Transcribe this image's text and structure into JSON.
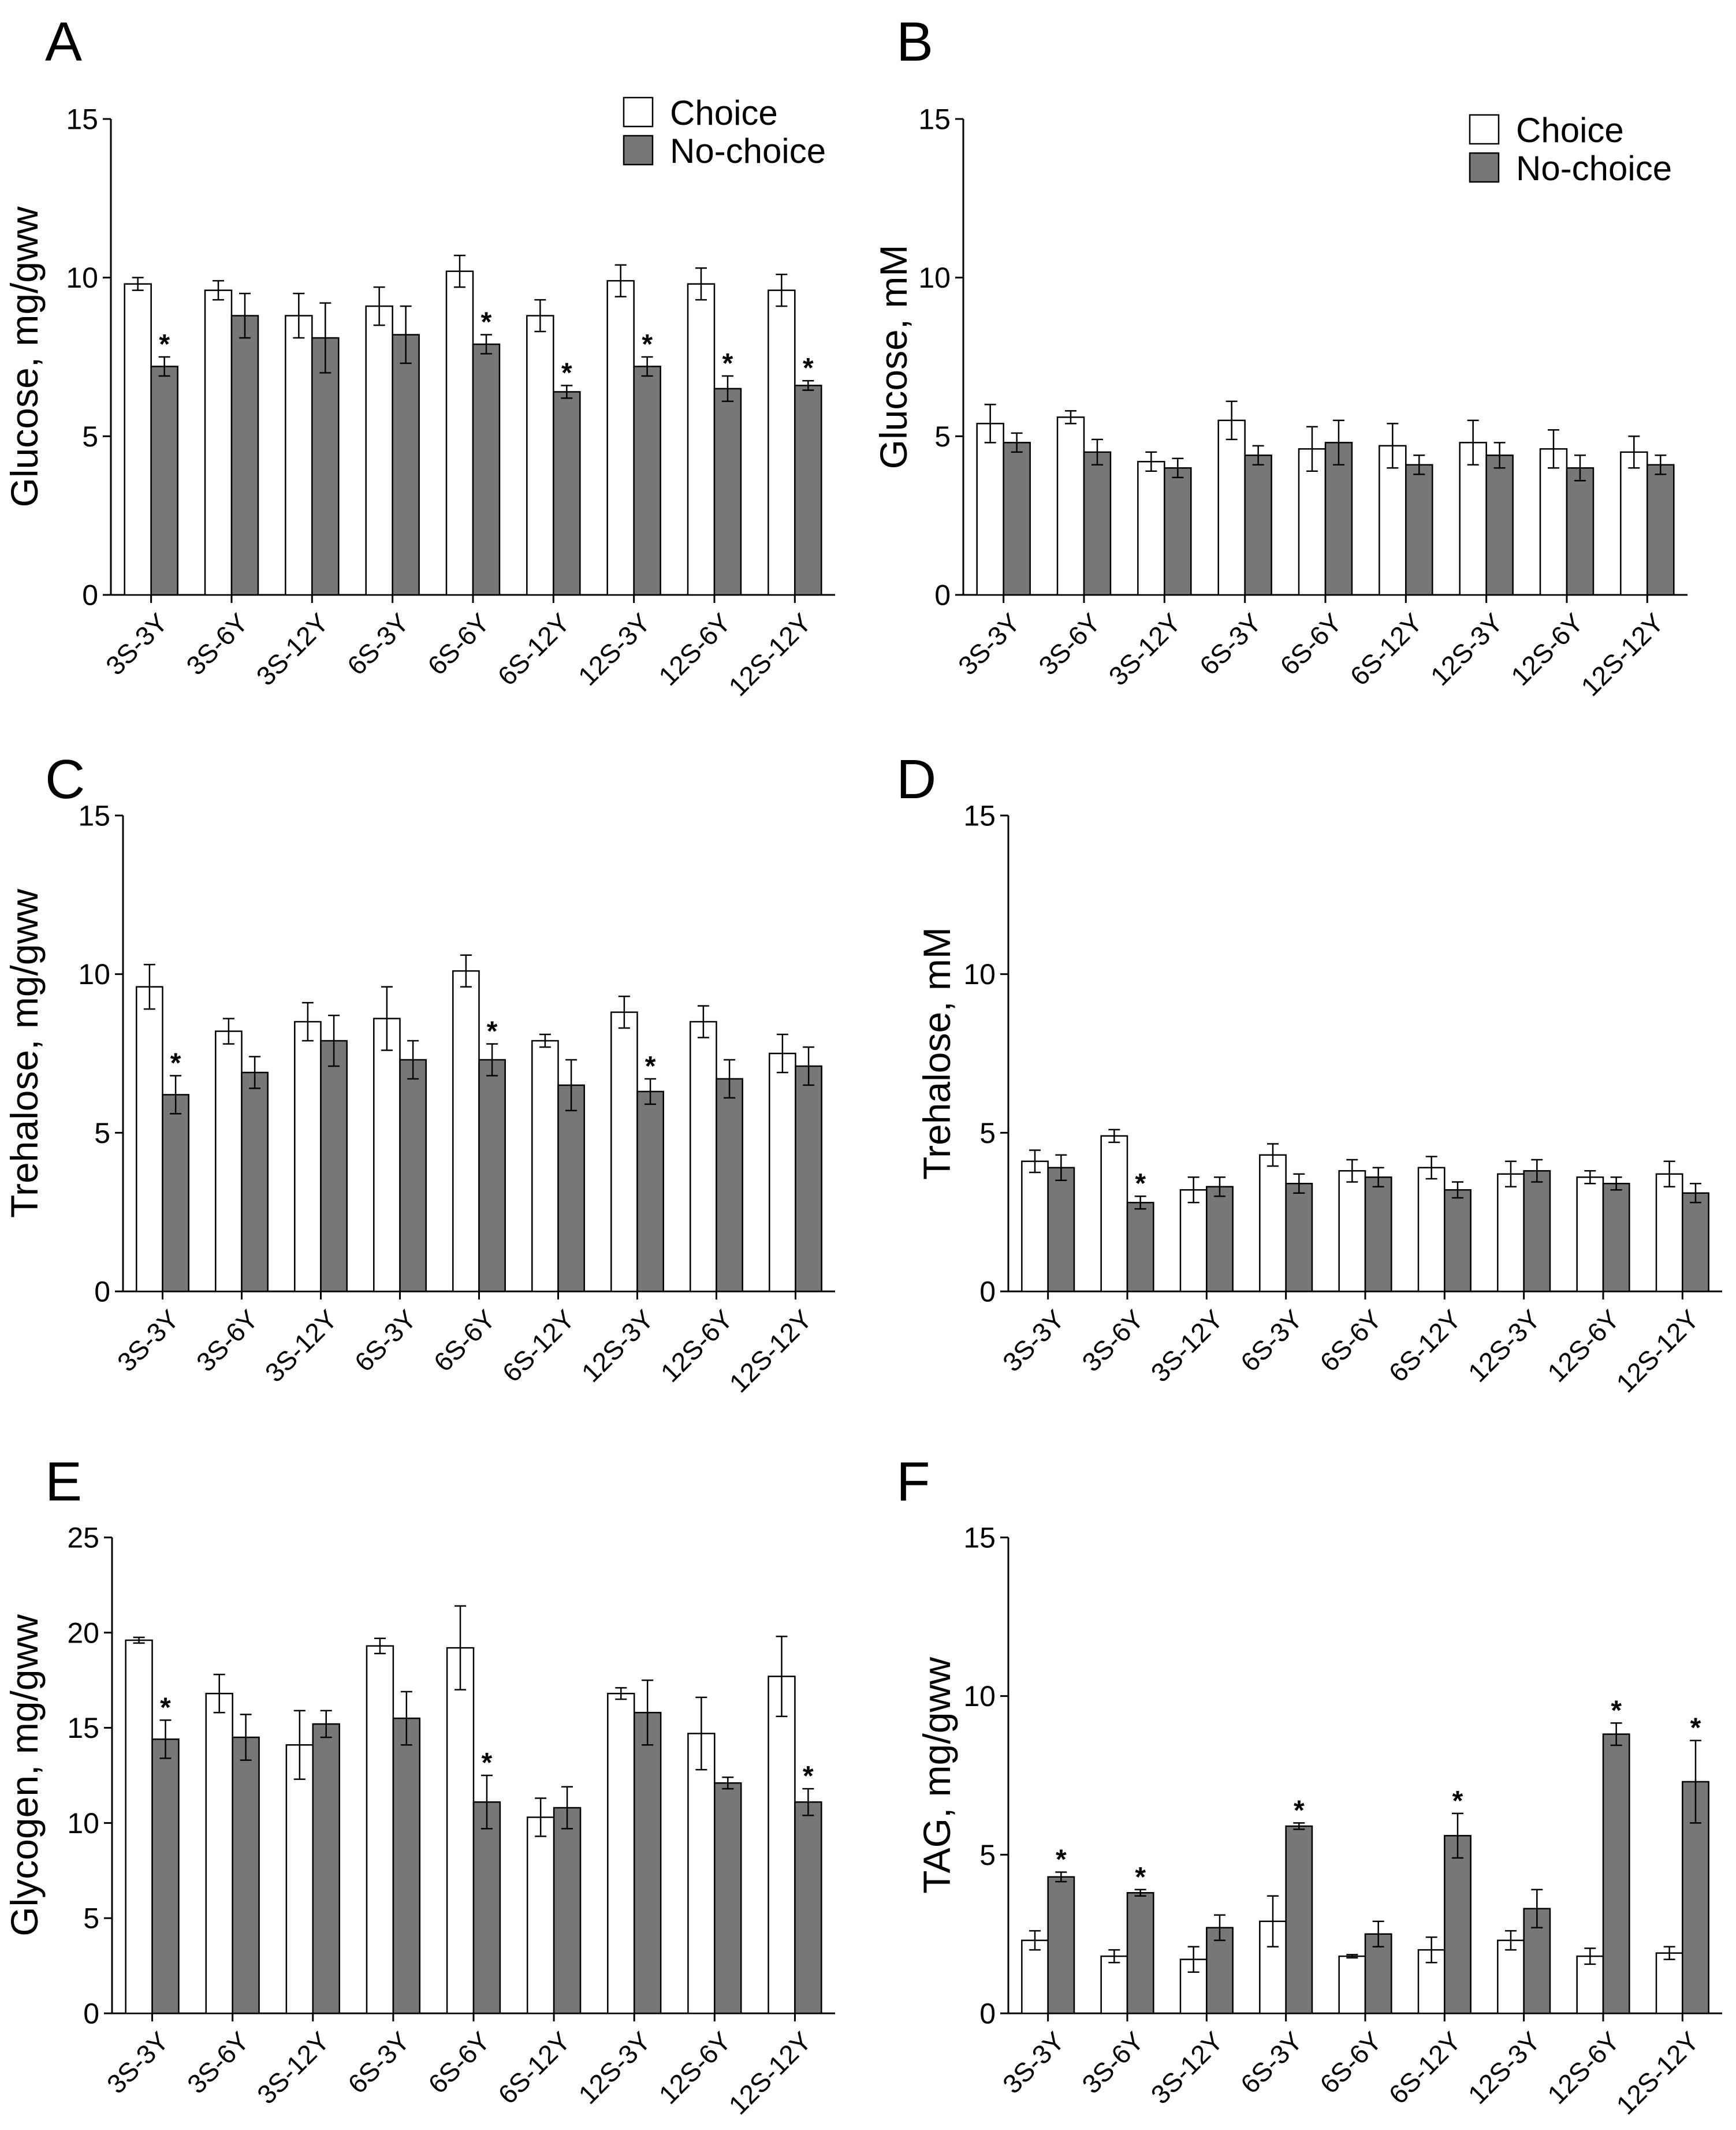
{
  "legend": {
    "choice_label": "Choice",
    "nochoice_label": "No-choice",
    "choice_color": "#ffffff",
    "nochoice_color": "#777777"
  },
  "chart_data": [
    {
      "panel": "A",
      "type": "bar",
      "ylabel": "Glucose, mg/gww",
      "ylim": [
        0,
        15
      ],
      "yticks": [
        0,
        5,
        10,
        15
      ],
      "legend": "top-right",
      "categories": [
        "3S-3Y",
        "3S-6Y",
        "3S-12Y",
        "6S-3Y",
        "6S-6Y",
        "6S-12Y",
        "12S-3Y",
        "12S-6Y",
        "12S-12Y"
      ],
      "series": [
        {
          "name": "Choice",
          "values": [
            9.8,
            9.6,
            8.8,
            9.1,
            10.2,
            8.8,
            9.9,
            9.8,
            9.6
          ],
          "errors": [
            0.2,
            0.3,
            0.7,
            0.6,
            0.5,
            0.5,
            0.5,
            0.5,
            0.5
          ]
        },
        {
          "name": "No-choice",
          "values": [
            7.2,
            8.8,
            8.1,
            8.2,
            7.9,
            6.4,
            7.2,
            6.5,
            6.6
          ],
          "errors": [
            0.3,
            0.7,
            1.1,
            0.9,
            0.3,
            0.2,
            0.3,
            0.4,
            0.15
          ],
          "significant": [
            true,
            false,
            false,
            false,
            true,
            true,
            true,
            true,
            true
          ]
        }
      ]
    },
    {
      "panel": "B",
      "type": "bar",
      "ylabel": "Glucose, mM",
      "ylim": [
        0,
        15
      ],
      "yticks": [
        0,
        5,
        10,
        15
      ],
      "legend": "top-right",
      "categories": [
        "3S-3Y",
        "3S-6Y",
        "3S-12Y",
        "6S-3Y",
        "6S-6Y",
        "6S-12Y",
        "12S-3Y",
        "12S-6Y",
        "12S-12Y"
      ],
      "series": [
        {
          "name": "Choice",
          "values": [
            5.4,
            5.6,
            4.2,
            5.5,
            4.6,
            4.7,
            4.8,
            4.6,
            4.5
          ],
          "errors": [
            0.6,
            0.2,
            0.3,
            0.6,
            0.7,
            0.7,
            0.7,
            0.6,
            0.5
          ]
        },
        {
          "name": "No-choice",
          "values": [
            4.8,
            4.5,
            4.0,
            4.4,
            4.8,
            4.1,
            4.4,
            4.0,
            4.1
          ],
          "errors": [
            0.3,
            0.4,
            0.3,
            0.3,
            0.7,
            0.3,
            0.4,
            0.4,
            0.3
          ],
          "significant": [
            false,
            false,
            false,
            false,
            false,
            false,
            false,
            false,
            false
          ]
        }
      ]
    },
    {
      "panel": "C",
      "type": "bar",
      "ylabel": "Trehalose, mg/gww",
      "ylim": [
        0,
        15
      ],
      "yticks": [
        0,
        5,
        10,
        15
      ],
      "categories": [
        "3S-3Y",
        "3S-6Y",
        "3S-12Y",
        "6S-3Y",
        "6S-6Y",
        "6S-12Y",
        "12S-3Y",
        "12S-6Y",
        "12S-12Y"
      ],
      "series": [
        {
          "name": "Choice",
          "values": [
            9.6,
            8.2,
            8.5,
            8.6,
            10.1,
            7.9,
            8.8,
            8.5,
            7.5
          ],
          "errors": [
            0.7,
            0.4,
            0.6,
            1.0,
            0.5,
            0.2,
            0.5,
            0.5,
            0.6
          ]
        },
        {
          "name": "No-choice",
          "values": [
            6.2,
            6.9,
            7.9,
            7.3,
            7.3,
            6.5,
            6.3,
            6.7,
            7.1
          ],
          "errors": [
            0.6,
            0.5,
            0.8,
            0.6,
            0.5,
            0.8,
            0.4,
            0.6,
            0.6
          ],
          "significant": [
            true,
            false,
            false,
            false,
            true,
            false,
            true,
            false,
            false
          ]
        }
      ]
    },
    {
      "panel": "D",
      "type": "bar",
      "ylabel": "Trehalose, mM",
      "ylim": [
        0,
        15
      ],
      "yticks": [
        0,
        5,
        10,
        15
      ],
      "categories": [
        "3S-3Y",
        "3S-6Y",
        "3S-12Y",
        "6S-3Y",
        "6S-6Y",
        "6S-12Y",
        "12S-3Y",
        "12S-6Y",
        "12S-12Y"
      ],
      "series": [
        {
          "name": "Choice",
          "values": [
            4.1,
            4.9,
            3.2,
            4.3,
            3.8,
            3.9,
            3.7,
            3.6,
            3.7
          ],
          "errors": [
            0.35,
            0.2,
            0.4,
            0.35,
            0.35,
            0.35,
            0.4,
            0.2,
            0.4
          ]
        },
        {
          "name": "No-choice",
          "values": [
            3.9,
            2.8,
            3.3,
            3.4,
            3.6,
            3.2,
            3.8,
            3.4,
            3.1
          ],
          "errors": [
            0.4,
            0.2,
            0.3,
            0.3,
            0.3,
            0.25,
            0.35,
            0.2,
            0.3
          ],
          "significant": [
            false,
            true,
            false,
            false,
            false,
            false,
            false,
            false,
            false
          ]
        }
      ]
    },
    {
      "panel": "E",
      "type": "bar",
      "ylabel": "Glycogen, mg/gww",
      "ylim": [
        0,
        25
      ],
      "yticks": [
        0,
        5,
        10,
        15,
        20,
        25
      ],
      "categories": [
        "3S-3Y",
        "3S-6Y",
        "3S-12Y",
        "6S-3Y",
        "6S-6Y",
        "6S-12Y",
        "12S-3Y",
        "12S-6Y",
        "12S-12Y"
      ],
      "series": [
        {
          "name": "Choice",
          "values": [
            19.6,
            16.8,
            14.1,
            19.3,
            19.2,
            10.3,
            16.8,
            14.7,
            17.7
          ],
          "errors": [
            0.15,
            1.0,
            1.8,
            0.4,
            2.2,
            1.0,
            0.3,
            1.9,
            2.1
          ]
        },
        {
          "name": "No-choice",
          "values": [
            14.4,
            14.5,
            15.2,
            15.5,
            11.1,
            10.8,
            15.8,
            12.1,
            11.1
          ],
          "errors": [
            1.0,
            1.2,
            0.7,
            1.4,
            1.4,
            1.1,
            1.7,
            0.3,
            0.7
          ],
          "significant": [
            true,
            false,
            false,
            false,
            true,
            false,
            false,
            false,
            true
          ]
        }
      ]
    },
    {
      "panel": "F",
      "type": "bar",
      "ylabel": "TAG, mg/gww",
      "ylim": [
        0,
        15
      ],
      "yticks": [
        0,
        5,
        10,
        15
      ],
      "categories": [
        "3S-3Y",
        "3S-6Y",
        "3S-12Y",
        "6S-3Y",
        "6S-6Y",
        "6S-12Y",
        "12S-3Y",
        "12S-6Y",
        "12S-12Y"
      ],
      "series": [
        {
          "name": "Choice",
          "values": [
            2.3,
            1.8,
            1.7,
            2.9,
            1.8,
            2.0,
            2.3,
            1.8,
            1.9
          ],
          "errors": [
            0.3,
            0.2,
            0.4,
            0.8,
            0.05,
            0.4,
            0.3,
            0.25,
            0.2
          ]
        },
        {
          "name": "No-choice",
          "values": [
            4.3,
            3.8,
            2.7,
            5.9,
            2.5,
            5.6,
            3.3,
            8.8,
            7.3
          ],
          "errors": [
            0.15,
            0.1,
            0.4,
            0.1,
            0.4,
            0.7,
            0.6,
            0.35,
            1.3
          ],
          "significant": [
            true,
            true,
            false,
            true,
            false,
            true,
            false,
            true,
            true
          ]
        }
      ]
    }
  ]
}
